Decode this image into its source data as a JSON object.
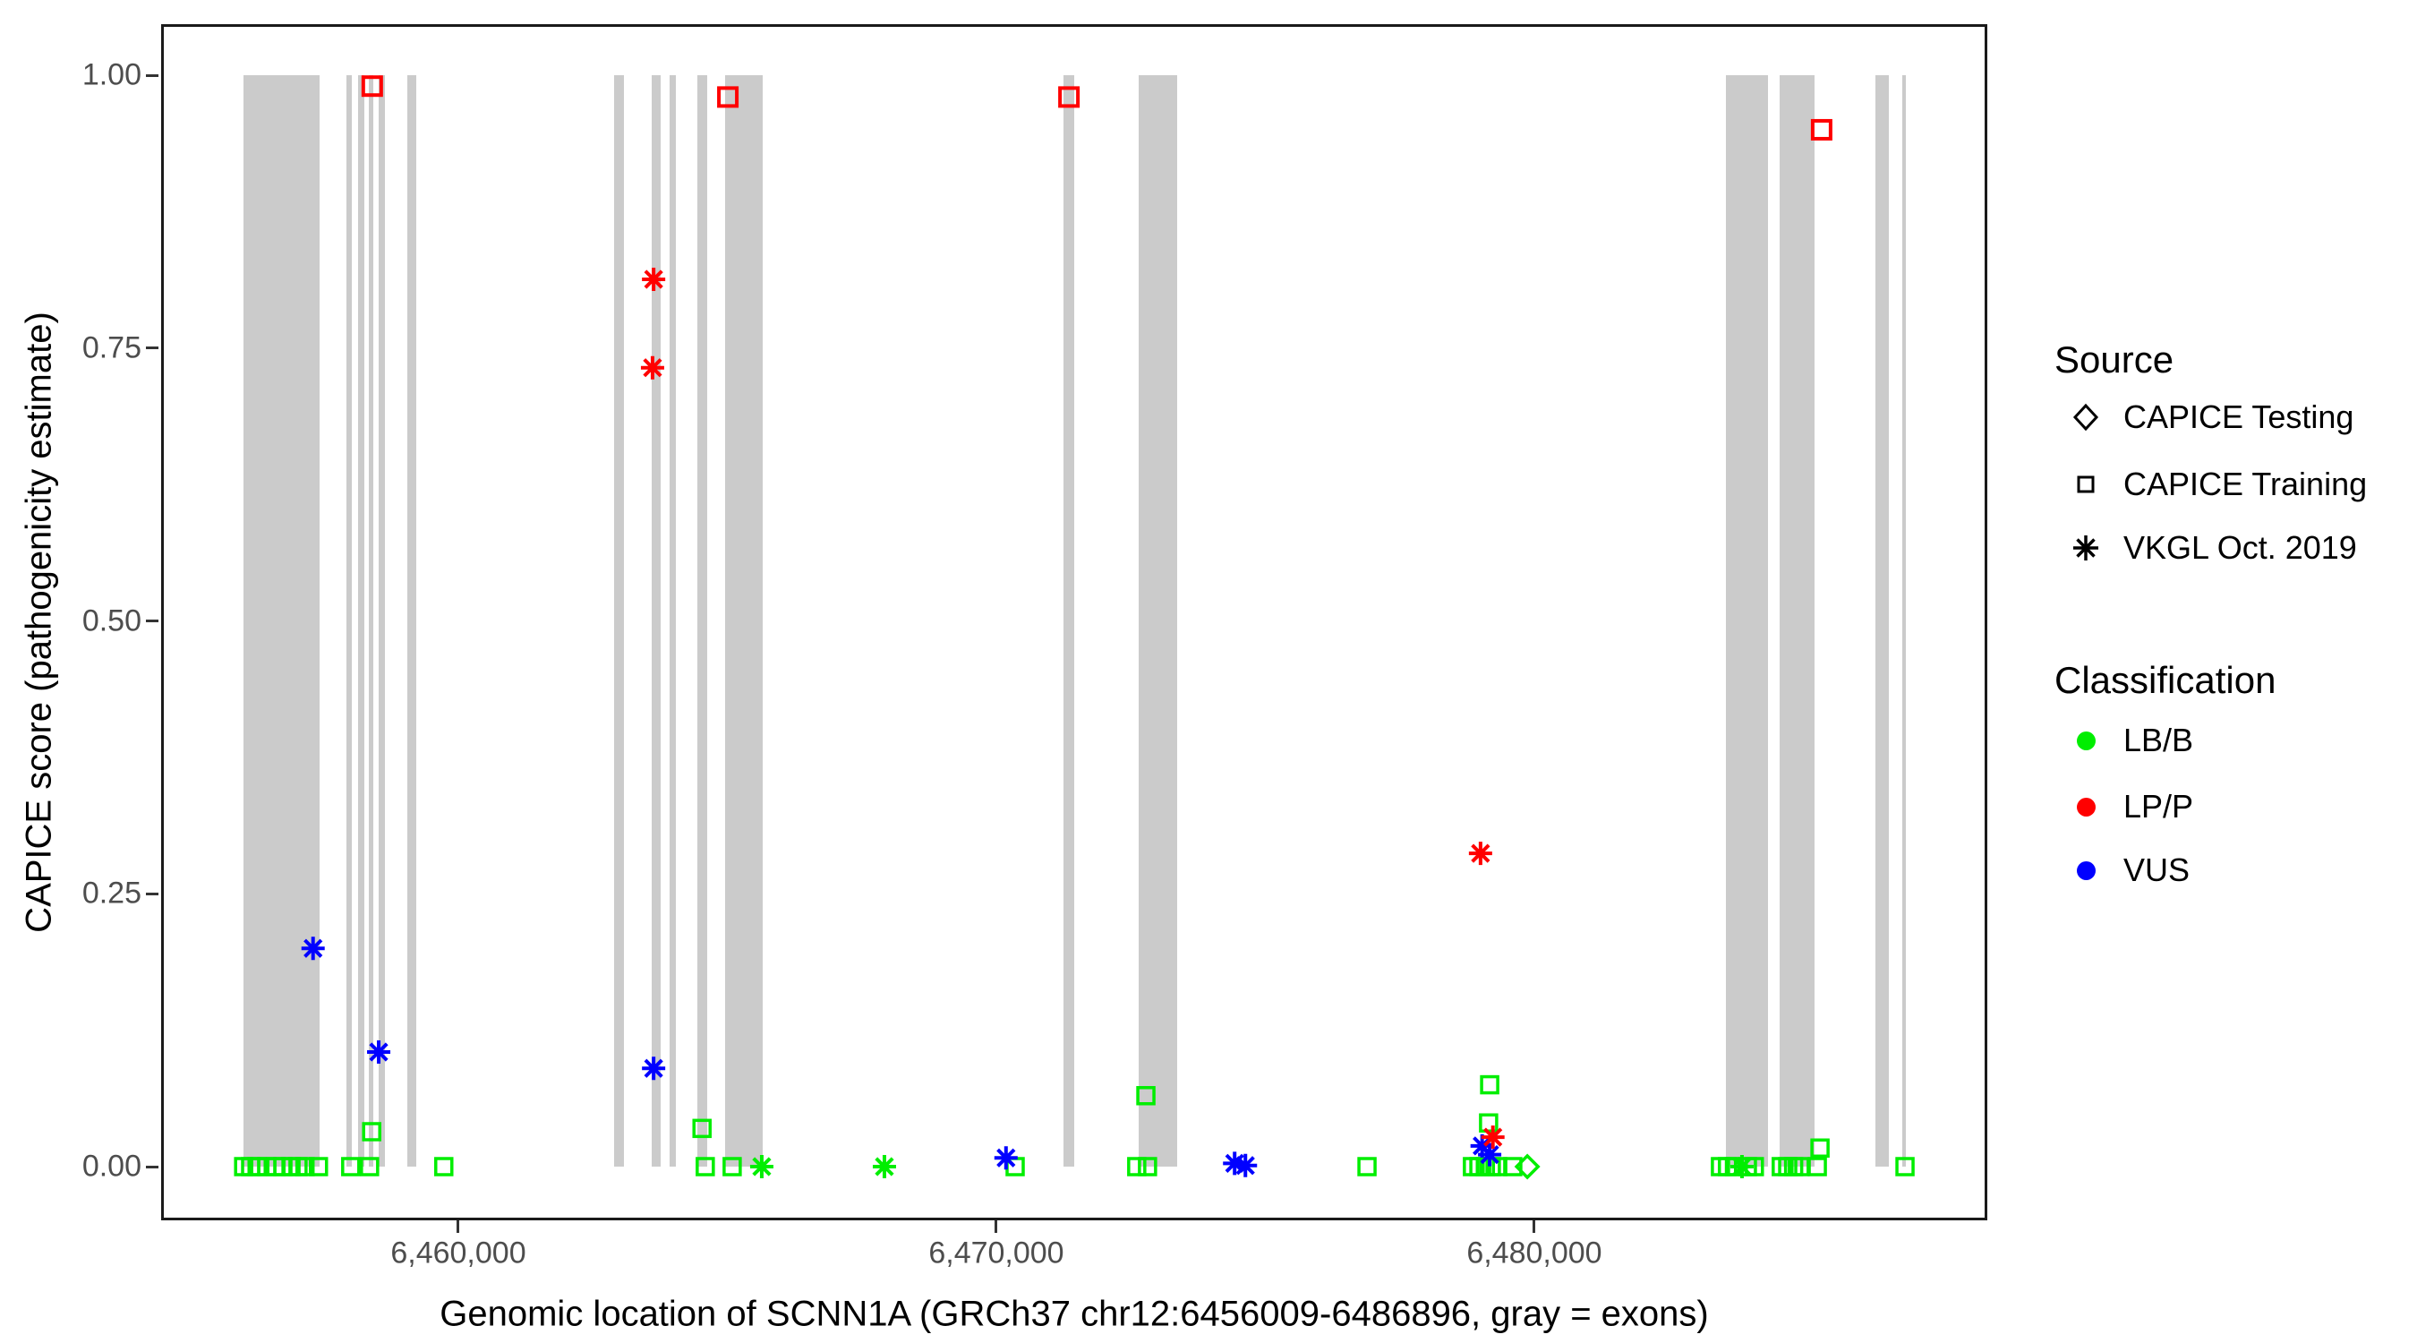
{
  "figure": {
    "y_axis": {
      "title": "CAPICE score (pathogenicity estimate)",
      "ticks": [
        {
          "label": "1.00",
          "value": 1.0
        },
        {
          "label": "0.75",
          "value": 0.75
        },
        {
          "label": "0.50",
          "value": 0.5
        },
        {
          "label": "0.25",
          "value": 0.25
        },
        {
          "label": "0.00",
          "value": 0.0
        }
      ]
    },
    "x_axis": {
      "title": "Genomic location of SCNN1A (GRCh37 chr12:6456009-6486896, gray = exons)",
      "ticks": [
        {
          "label": "6,460,000",
          "value": 6460000
        },
        {
          "label": "6,470,000",
          "value": 6470000
        },
        {
          "label": "6,480,000",
          "value": 6480000
        }
      ]
    },
    "legend": {
      "source": {
        "title": "Source",
        "items": [
          {
            "shape": "diamond",
            "label": "CAPICE Testing"
          },
          {
            "shape": "square",
            "label": "CAPICE Training"
          },
          {
            "shape": "asterisk",
            "label": "VKGL Oct. 2019"
          }
        ]
      },
      "classification": {
        "title": "Classification",
        "items": [
          {
            "color": "#00EE00",
            "label": "LB/B"
          },
          {
            "color": "#FF0000",
            "label": "LP/P"
          },
          {
            "color": "#0000FF",
            "label": "VUS"
          }
        ]
      }
    }
  },
  "chart_data": {
    "type": "scatter",
    "title": "",
    "xlabel": "Genomic location of SCNN1A (GRCh37 chr12:6456009-6486896, gray = exons)",
    "ylabel": "CAPICE score (pathogenicity estimate)",
    "x_axis_range": [
      6454476,
      6488420
    ],
    "y_axis_range": [
      0,
      1
    ],
    "gene_region": [
      6456009,
      6486896
    ],
    "exon_color": "#CBCBCB",
    "class_colors": {
      "LB/B": "#00EE00",
      "LP/P": "#FF0000",
      "VUS": "#0000FF"
    },
    "source_shapes": {
      "CAPICE Testing": "diamond",
      "CAPICE Training": "square",
      "VKGL Oct. 2019": "asterisk"
    },
    "exons": [
      [
        6456010,
        6457420
      ],
      [
        6457920,
        6458020
      ],
      [
        6458140,
        6458250
      ],
      [
        6458340,
        6458420
      ],
      [
        6458520,
        6458640
      ],
      [
        6459050,
        6459220
      ],
      [
        6462890,
        6463080
      ],
      [
        6463590,
        6463760
      ],
      [
        6463930,
        6464040
      ],
      [
        6464440,
        6464630
      ],
      [
        6464960,
        6465660
      ],
      [
        6471250,
        6471450
      ],
      [
        6472640,
        6473360
      ],
      [
        6483560,
        6484340
      ],
      [
        6484560,
        6485210
      ],
      [
        6486340,
        6486590
      ],
      [
        6486840,
        6486900
      ]
    ],
    "points": [
      {
        "pos": 6456010,
        "score": 0.0,
        "class": "LB/B",
        "source": "CAPICE Training"
      },
      {
        "pos": 6456140,
        "score": 0.0,
        "class": "LB/B",
        "source": "CAPICE Training"
      },
      {
        "pos": 6456260,
        "score": 0.0,
        "class": "LB/B",
        "source": "CAPICE Training"
      },
      {
        "pos": 6456440,
        "score": 0.0,
        "class": "LB/B",
        "source": "CAPICE Training"
      },
      {
        "pos": 6456610,
        "score": 0.0,
        "class": "LB/B",
        "source": "CAPICE Training"
      },
      {
        "pos": 6456740,
        "score": 0.0,
        "class": "LB/B",
        "source": "CAPICE Training"
      },
      {
        "pos": 6456890,
        "score": 0.0,
        "class": "LB/B",
        "source": "CAPICE Training"
      },
      {
        "pos": 6457020,
        "score": 0.0,
        "class": "LB/B",
        "source": "CAPICE Training"
      },
      {
        "pos": 6457150,
        "score": 0.0,
        "class": "LB/B",
        "source": "CAPICE Training"
      },
      {
        "pos": 6457400,
        "score": 0.0,
        "class": "LB/B",
        "source": "CAPICE Training"
      },
      {
        "pos": 6458000,
        "score": 0.0,
        "class": "LB/B",
        "source": "CAPICE Training"
      },
      {
        "pos": 6458350,
        "score": 0.0,
        "class": "LB/B",
        "source": "CAPICE Training"
      },
      {
        "pos": 6458390,
        "score": 0.032,
        "class": "LB/B",
        "source": "CAPICE Training"
      },
      {
        "pos": 6459730,
        "score": 0.0,
        "class": "LB/B",
        "source": "CAPICE Training"
      },
      {
        "pos": 6464530,
        "score": 0.035,
        "class": "LB/B",
        "source": "CAPICE Training"
      },
      {
        "pos": 6464590,
        "score": 0.0,
        "class": "LB/B",
        "source": "CAPICE Training"
      },
      {
        "pos": 6465090,
        "score": 0.0,
        "class": "LB/B",
        "source": "CAPICE Training"
      },
      {
        "pos": 6465640,
        "score": 0.0,
        "class": "LB/B",
        "source": "VKGL Oct. 2019"
      },
      {
        "pos": 6467920,
        "score": 0.0,
        "class": "LB/B",
        "source": "VKGL Oct. 2019"
      },
      {
        "pos": 6470350,
        "score": 0.0,
        "class": "LB/B",
        "source": "CAPICE Training"
      },
      {
        "pos": 6472610,
        "score": 0.0,
        "class": "LB/B",
        "source": "CAPICE Training"
      },
      {
        "pos": 6472780,
        "score": 0.065,
        "class": "LB/B",
        "source": "CAPICE Training"
      },
      {
        "pos": 6472810,
        "score": 0.0,
        "class": "LB/B",
        "source": "CAPICE Training"
      },
      {
        "pos": 6476890,
        "score": 0.0,
        "class": "LB/B",
        "source": "CAPICE Training"
      },
      {
        "pos": 6478850,
        "score": 0.0,
        "class": "LB/B",
        "source": "CAPICE Training"
      },
      {
        "pos": 6478970,
        "score": 0.0,
        "class": "LB/B",
        "source": "CAPICE Training"
      },
      {
        "pos": 6479090,
        "score": 0.0,
        "class": "LB/B",
        "source": "CAPICE Training"
      },
      {
        "pos": 6479150,
        "score": 0.04,
        "class": "LB/B",
        "source": "CAPICE Training"
      },
      {
        "pos": 6479170,
        "score": 0.075,
        "class": "LB/B",
        "source": "CAPICE Training"
      },
      {
        "pos": 6479200,
        "score": 0.0,
        "class": "LB/B",
        "source": "CAPICE Training"
      },
      {
        "pos": 6479320,
        "score": 0.0,
        "class": "LB/B",
        "source": "CAPICE Training"
      },
      {
        "pos": 6479600,
        "score": 0.0,
        "class": "LB/B",
        "source": "CAPICE Training"
      },
      {
        "pos": 6479870,
        "score": 0.0,
        "class": "LB/B",
        "source": "CAPICE Testing"
      },
      {
        "pos": 6483460,
        "score": 0.0,
        "class": "LB/B",
        "source": "CAPICE Training"
      },
      {
        "pos": 6483590,
        "score": 0.0,
        "class": "LB/B",
        "source": "CAPICE Training"
      },
      {
        "pos": 6483720,
        "score": 0.0,
        "class": "LB/B",
        "source": "CAPICE Training"
      },
      {
        "pos": 6483860,
        "score": 0.0,
        "class": "LB/B",
        "source": "VKGL Oct. 2019"
      },
      {
        "pos": 6483960,
        "score": 0.0,
        "class": "LB/B",
        "source": "CAPICE Training"
      },
      {
        "pos": 6484090,
        "score": 0.0,
        "class": "LB/B",
        "source": "CAPICE Training"
      },
      {
        "pos": 6484590,
        "score": 0.0,
        "class": "LB/B",
        "source": "CAPICE Training"
      },
      {
        "pos": 6484710,
        "score": 0.0,
        "class": "LB/B",
        "source": "CAPICE Training"
      },
      {
        "pos": 6484820,
        "score": 0.0,
        "class": "LB/B",
        "source": "CAPICE Training"
      },
      {
        "pos": 6484940,
        "score": 0.0,
        "class": "LB/B",
        "source": "CAPICE Training"
      },
      {
        "pos": 6485260,
        "score": 0.0,
        "class": "LB/B",
        "source": "CAPICE Training"
      },
      {
        "pos": 6485310,
        "score": 0.017,
        "class": "LB/B",
        "source": "CAPICE Training"
      },
      {
        "pos": 6486890,
        "score": 0.0,
        "class": "LB/B",
        "source": "CAPICE Training"
      },
      {
        "pos": 6457300,
        "score": 0.2,
        "class": "VUS",
        "source": "VKGL Oct. 2019"
      },
      {
        "pos": 6458520,
        "score": 0.105,
        "class": "VUS",
        "source": "VKGL Oct. 2019"
      },
      {
        "pos": 6463630,
        "score": 0.09,
        "class": "VUS",
        "source": "VKGL Oct. 2019"
      },
      {
        "pos": 6470180,
        "score": 0.008,
        "class": "VUS",
        "source": "VKGL Oct. 2019"
      },
      {
        "pos": 6474430,
        "score": 0.003,
        "class": "VUS",
        "source": "VKGL Oct. 2019"
      },
      {
        "pos": 6474630,
        "score": 0.001,
        "class": "VUS",
        "source": "VKGL Oct. 2019"
      },
      {
        "pos": 6479030,
        "score": 0.019,
        "class": "VUS",
        "source": "VKGL Oct. 2019"
      },
      {
        "pos": 6479170,
        "score": 0.011,
        "class": "VUS",
        "source": "VKGL Oct. 2019"
      },
      {
        "pos": 6463610,
        "score": 0.732,
        "class": "LP/P",
        "source": "VKGL Oct. 2019"
      },
      {
        "pos": 6463630,
        "score": 0.813,
        "class": "LP/P",
        "source": "VKGL Oct. 2019"
      },
      {
        "pos": 6479000,
        "score": 0.287,
        "class": "LP/P",
        "source": "VKGL Oct. 2019"
      },
      {
        "pos": 6479230,
        "score": 0.027,
        "class": "LP/P",
        "source": "VKGL Oct. 2019"
      },
      {
        "pos": 6458400,
        "score": 0.99,
        "class": "LP/P",
        "source": "CAPICE Training"
      },
      {
        "pos": 6465010,
        "score": 0.98,
        "class": "LP/P",
        "source": "CAPICE Training"
      },
      {
        "pos": 6471350,
        "score": 0.98,
        "class": "LP/P",
        "source": "CAPICE Training"
      },
      {
        "pos": 6485340,
        "score": 0.95,
        "class": "LP/P",
        "source": "CAPICE Training"
      }
    ]
  }
}
